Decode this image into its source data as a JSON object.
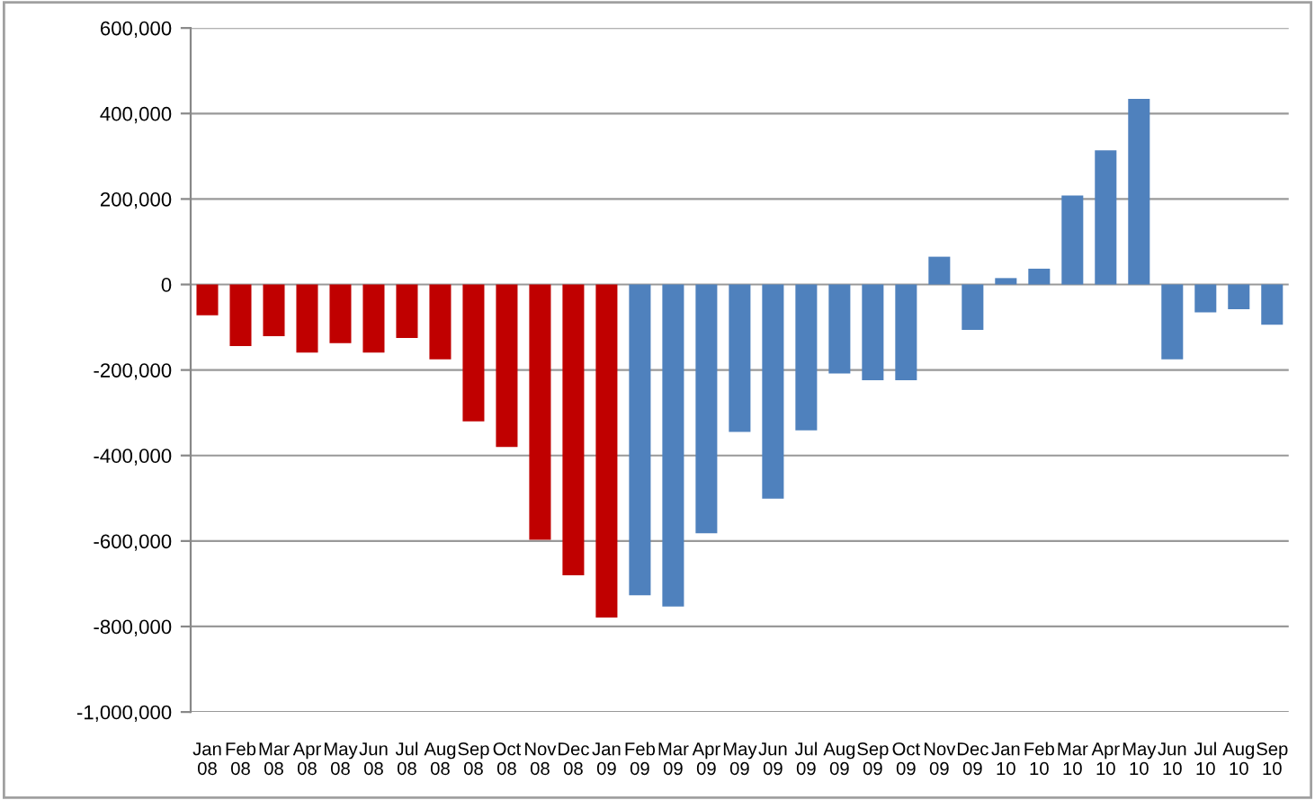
{
  "chart_data": {
    "type": "bar",
    "categories": [
      "Jan\n08",
      "Feb\n08",
      "Mar\n08",
      "Apr\n08",
      "May\n08",
      "Jun\n08",
      "Jul\n08",
      "Aug\n08",
      "Sep\n08",
      "Oct\n08",
      "Nov\n08",
      "Dec\n08",
      "Jan\n09",
      "Feb\n09",
      "Mar\n09",
      "Apr\n09",
      "May\n09",
      "Jun\n09",
      "Jul\n09",
      "Aug\n09",
      "Sep\n09",
      "Oct\n09",
      "Nov\n09",
      "Dec\n09",
      "Jan\n10",
      "Feb\n10",
      "Mar\n10",
      "Apr\n10",
      "May\n10",
      "Jun\n10",
      "Jul\n10",
      "Aug\n10",
      "Sep\n10"
    ],
    "values": [
      -72000,
      -144000,
      -121000,
      -159000,
      -137000,
      -159000,
      -125000,
      -175000,
      -320000,
      -380000,
      -597000,
      -680000,
      -779000,
      -727000,
      -753000,
      -582000,
      -345000,
      -501000,
      -341000,
      -208000,
      -224000,
      -224000,
      65000,
      -106000,
      15000,
      37000,
      208000,
      314000,
      434000,
      -175000,
      -65000,
      -58000,
      -94000
    ],
    "colors": [
      "#c00000",
      "#c00000",
      "#c00000",
      "#c00000",
      "#c00000",
      "#c00000",
      "#c00000",
      "#c00000",
      "#c00000",
      "#c00000",
      "#c00000",
      "#c00000",
      "#c00000",
      "#4f81bd",
      "#4f81bd",
      "#4f81bd",
      "#4f81bd",
      "#4f81bd",
      "#4f81bd",
      "#4f81bd",
      "#4f81bd",
      "#4f81bd",
      "#4f81bd",
      "#4f81bd",
      "#4f81bd",
      "#4f81bd",
      "#4f81bd",
      "#4f81bd",
      "#4f81bd",
      "#4f81bd",
      "#4f81bd",
      "#4f81bd",
      "#4f81bd"
    ],
    "ylim": [
      -1000000,
      600000
    ],
    "yticks": [
      {
        "value": -1000000,
        "label": "-1,000,000"
      },
      {
        "value": -800000,
        "label": "-800,000"
      },
      {
        "value": -600000,
        "label": "-600,000"
      },
      {
        "value": -400000,
        "label": "-400,000"
      },
      {
        "value": -200000,
        "label": "-200,000"
      },
      0,
      {
        "value": 200000,
        "label": "200,000"
      },
      {
        "value": 400000,
        "label": "400,000"
      },
      {
        "value": 600000,
        "label": "600,000"
      }
    ],
    "grid": "y"
  }
}
